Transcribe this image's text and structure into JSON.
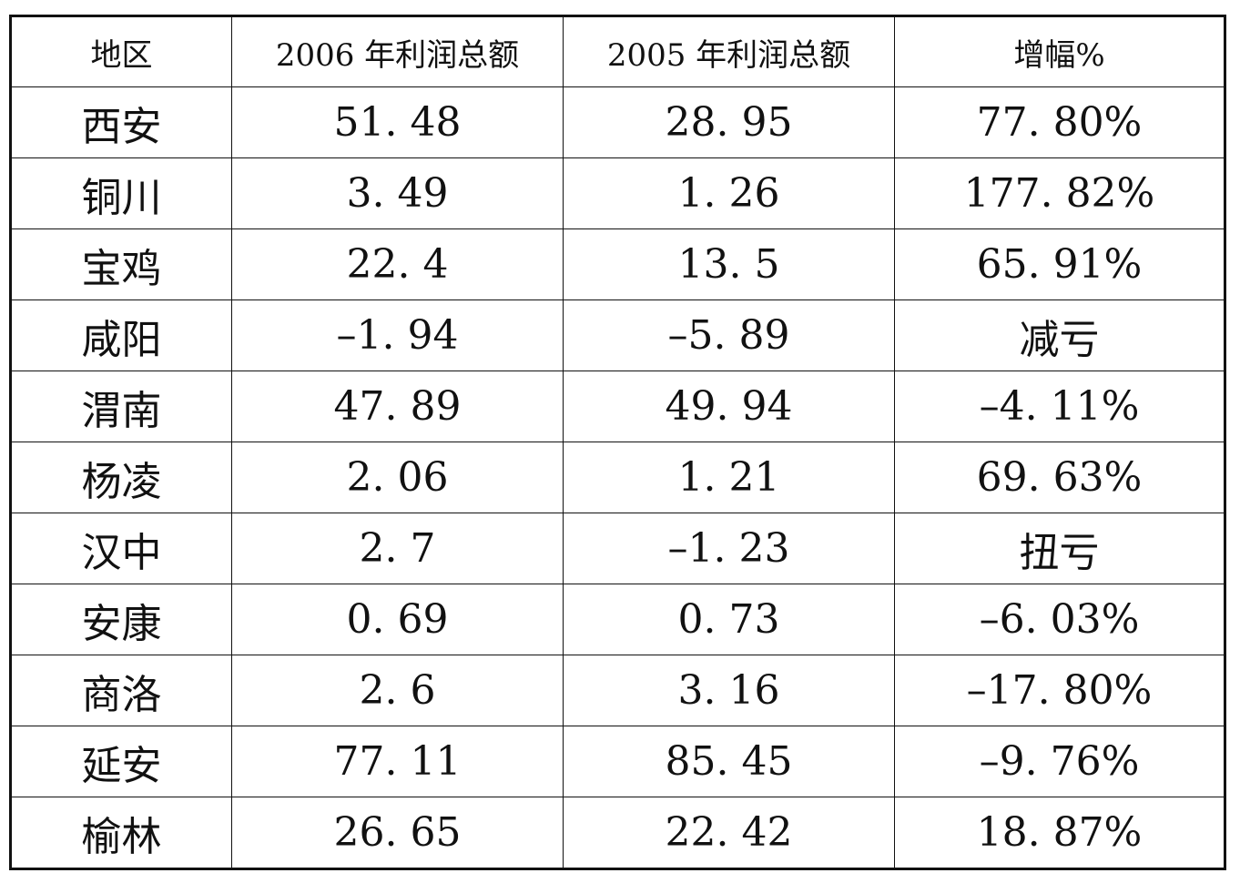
{
  "table": {
    "headers": [
      "地区",
      "2006 年利润总额",
      "2005 年利润总额",
      "增幅%"
    ],
    "rows": [
      [
        "西安",
        "51. 48",
        "28. 95",
        "77. 80%"
      ],
      [
        "铜川",
        "3. 49",
        "1. 26",
        "177. 82%"
      ],
      [
        "宝鸡",
        "22. 4",
        "13. 5",
        "65. 91%"
      ],
      [
        "咸阳",
        "–1. 94",
        "–5. 89",
        "减亏"
      ],
      [
        "渭南",
        "47. 89",
        "49. 94",
        "–4. 11%"
      ],
      [
        "杨凌",
        "2. 06",
        "1. 21",
        "69. 63%"
      ],
      [
        "汉中",
        "2. 7",
        "–1. 23",
        "扭亏"
      ],
      [
        "安康",
        "0. 69",
        "0. 73",
        "–6. 03%"
      ],
      [
        "商洛",
        "2. 6",
        "3. 16",
        "–17. 80%"
      ],
      [
        "延安",
        "77. 11",
        "85. 45",
        "–9. 76%"
      ],
      [
        "榆林",
        "26. 65",
        "22. 42",
        "18. 87%"
      ]
    ]
  }
}
